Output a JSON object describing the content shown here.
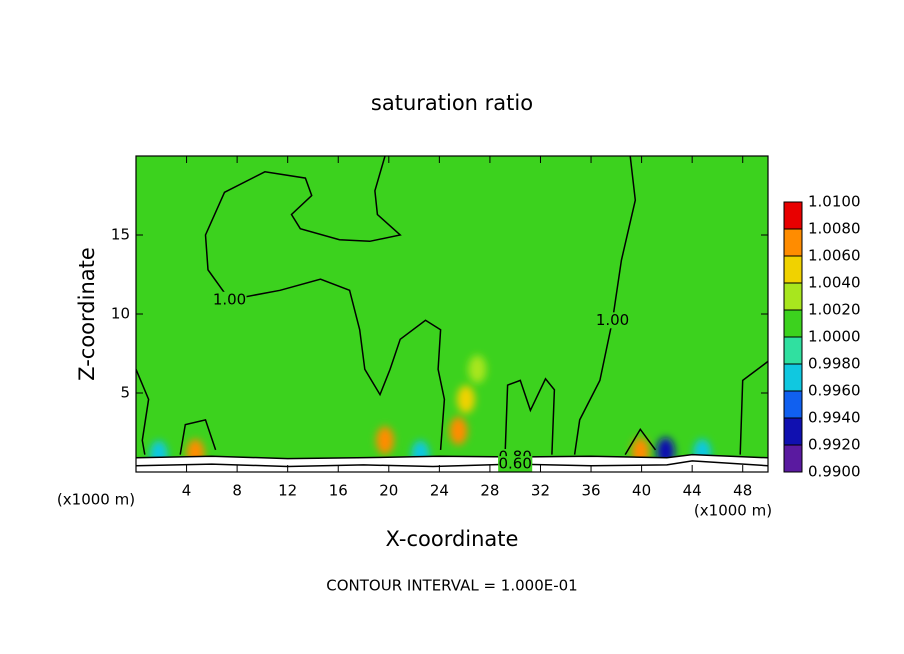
{
  "chart_data": {
    "type": "contour",
    "title": "saturation ratio",
    "x_label": "X-coordinate",
    "y_label": "Z-coordinate",
    "x_unit": "(x1000 m)",
    "y_unit": "(x1000 m)",
    "footer": "CONTOUR INTERVAL = 1.000E-01",
    "xlim": [
      0,
      50
    ],
    "xticks": [
      4,
      8,
      12,
      16,
      20,
      24,
      28,
      32,
      36,
      40,
      44,
      48
    ],
    "ylim": [
      0,
      20
    ],
    "yticks": [
      5,
      10,
      15
    ],
    "background_value": 1.001,
    "colorbar_ticks": [
      {
        "value": 0.99,
        "label": "0.9900"
      },
      {
        "value": 0.992,
        "label": "0.9920"
      },
      {
        "value": 0.994,
        "label": "0.9940"
      },
      {
        "value": 0.996,
        "label": "0.9960"
      },
      {
        "value": 0.998,
        "label": "0.9980"
      },
      {
        "value": 1.0,
        "label": "1.0000"
      },
      {
        "value": 1.002,
        "label": "1.0020"
      },
      {
        "value": 1.004,
        "label": "1.0040"
      },
      {
        "value": 1.006,
        "label": "1.0060"
      },
      {
        "value": 1.008,
        "label": "1.0080"
      },
      {
        "value": 1.01,
        "label": "1.0100"
      }
    ],
    "colors": [
      "#5a1aa0",
      "#1010b0",
      "#1060f0",
      "#10c8e0",
      "#30e0a0",
      "#3cd21e",
      "#a8e61e",
      "#f0d200",
      "#ff8c00",
      "#e80000",
      "#f08080"
    ],
    "spots": [
      {
        "x": 4.7,
        "z": 1.2,
        "value": 1.007
      },
      {
        "x": 19.7,
        "z": 2.0,
        "value": 1.007
      },
      {
        "x": 25.5,
        "z": 2.6,
        "value": 1.007
      },
      {
        "x": 26.1,
        "z": 4.6,
        "value": 1.005
      },
      {
        "x": 27.0,
        "z": 6.5,
        "value": 1.003
      },
      {
        "x": 39.9,
        "z": 1.3,
        "value": 1.006
      },
      {
        "x": 41.9,
        "z": 1.3,
        "value": 0.993
      },
      {
        "x": 1.8,
        "z": 1.1,
        "value": 0.997
      },
      {
        "x": 22.5,
        "z": 1.1,
        "value": 0.997
      },
      {
        "x": 44.8,
        "z": 1.2,
        "value": 0.997
      }
    ],
    "contours": [
      {
        "level": 1.0,
        "label": "1.00",
        "x": [
          19.7,
          18.9,
          19.1,
          20.9,
          18.5,
          16.1,
          13.0,
          12.3,
          13.9,
          13.4,
          10.2,
          7.0,
          5.5,
          5.7,
          7.4,
          11.4,
          14.6,
          16.9,
          17.7,
          18.1,
          19.3,
          20.1,
          20.9,
          22.9,
          24.1,
          23.9,
          24.4,
          24.1
        ],
        "z": [
          20,
          17.8,
          16.3,
          15.0,
          14.6,
          14.7,
          15.4,
          16.3,
          17.5,
          18.6,
          19.0,
          17.7,
          15.0,
          12.8,
          10.9,
          11.5,
          12.2,
          11.5,
          9.0,
          6.5,
          4.9,
          6.5,
          8.4,
          9.6,
          9.0,
          6.5,
          4.6,
          1.4
        ]
      },
      {
        "level": 1.0,
        "label": "1.00",
        "x": [
          39.1,
          39.5,
          38.4,
          37.7,
          36.7,
          35.1,
          34.7
        ],
        "z": [
          20,
          17.2,
          13.4,
          9.6,
          5.8,
          3.3,
          1.1
        ]
      },
      {
        "level": 1.0,
        "x": [
          29.2,
          29.4,
          30.4,
          31.2,
          32.4,
          33.1,
          32.9
        ],
        "z": [
          1.1,
          5.5,
          5.8,
          3.9,
          5.9,
          5.2,
          1.1
        ]
      },
      {
        "level": 1.0,
        "x": [
          0,
          1,
          0.5,
          0.7
        ],
        "z": [
          6.5,
          4.6,
          2.0,
          1.1
        ]
      },
      {
        "level": 1.0,
        "x": [
          3.5,
          3.9,
          5.5,
          6.3
        ],
        "z": [
          1.1,
          3.0,
          3.3,
          1.4
        ]
      },
      {
        "level": 1.0,
        "x": [
          38.7,
          39.9,
          41.1
        ],
        "z": [
          1.1,
          2.7,
          1.4
        ]
      },
      {
        "level": 1.0,
        "x": [
          47.8,
          48.0,
          50
        ],
        "z": [
          1.1,
          5.8,
          7.0
        ]
      },
      {
        "level": 0.8,
        "label": "0.80",
        "x": [
          0,
          6,
          12,
          17.5,
          24,
          30,
          36,
          42,
          44,
          50
        ],
        "z": [
          0.9,
          1.0,
          0.85,
          0.9,
          1.0,
          0.95,
          1.0,
          0.9,
          1.1,
          0.9
        ]
      },
      {
        "level": 0.6,
        "label": "0.60",
        "x": [
          0,
          6,
          12,
          18,
          23.5,
          30,
          36,
          42,
          44,
          50
        ],
        "z": [
          0.4,
          0.5,
          0.35,
          0.45,
          0.35,
          0.5,
          0.4,
          0.45,
          0.7,
          0.4
        ]
      }
    ]
  }
}
